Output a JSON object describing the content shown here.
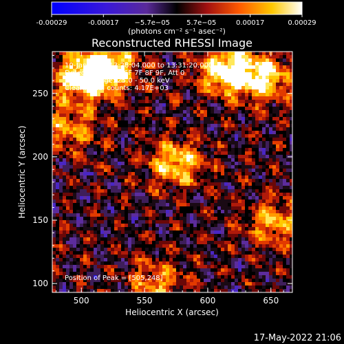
{
  "chart_data": {
    "type": "heatmap",
    "title": "Reconstructed RHESSI Image",
    "xlabel": "Heliocentric X (arcsec)",
    "ylabel": "Heliocentric Y (arcsec)",
    "xlim": [
      477,
      667
    ],
    "ylim": [
      93,
      283
    ],
    "xticks": [
      500,
      550,
      600,
      650
    ],
    "yticks": [
      100,
      150,
      200,
      250
    ],
    "grid": false,
    "colorbar": {
      "position": "top",
      "range": [
        -0.00029,
        0.00029
      ],
      "ticks": [
        "-0.00029",
        "-0.00017",
        "−5.7e−05",
        "5.7e−05",
        "0.00017",
        "0.00029"
      ],
      "tick_values": [
        -0.00029,
        -0.00017,
        -5.7e-05,
        5.7e-05,
        0.00017,
        0.00029
      ],
      "label": "(photons cm⁻² s⁻¹ asec⁻²)"
    },
    "annotations": [
      "10-Jan-2015 13:28:04.000 to 13:31:20.000",
      "Detectors: 3F 5F 6F 7F 8F 9F, Att 0",
      "Energy Range: 25.0 - 50.0 keV",
      "Clean. Total counts: 4.17E+03",
      "Position of Peak = [505,248]"
    ],
    "bright_regions": [
      {
        "x": 500,
        "y": 262,
        "level": 0.85
      },
      {
        "x": 522,
        "y": 270,
        "level": 0.9
      },
      {
        "x": 615,
        "y": 268,
        "level": 0.95
      },
      {
        "x": 645,
        "y": 262,
        "level": 0.8
      },
      {
        "x": 575,
        "y": 195,
        "level": 0.75
      },
      {
        "x": 652,
        "y": 148,
        "level": 0.6
      },
      {
        "x": 490,
        "y": 222,
        "level": 0.55
      },
      {
        "x": 560,
        "y": 102,
        "level": 0.5
      }
    ],
    "timestamp": "17-May-2022 21:06"
  }
}
